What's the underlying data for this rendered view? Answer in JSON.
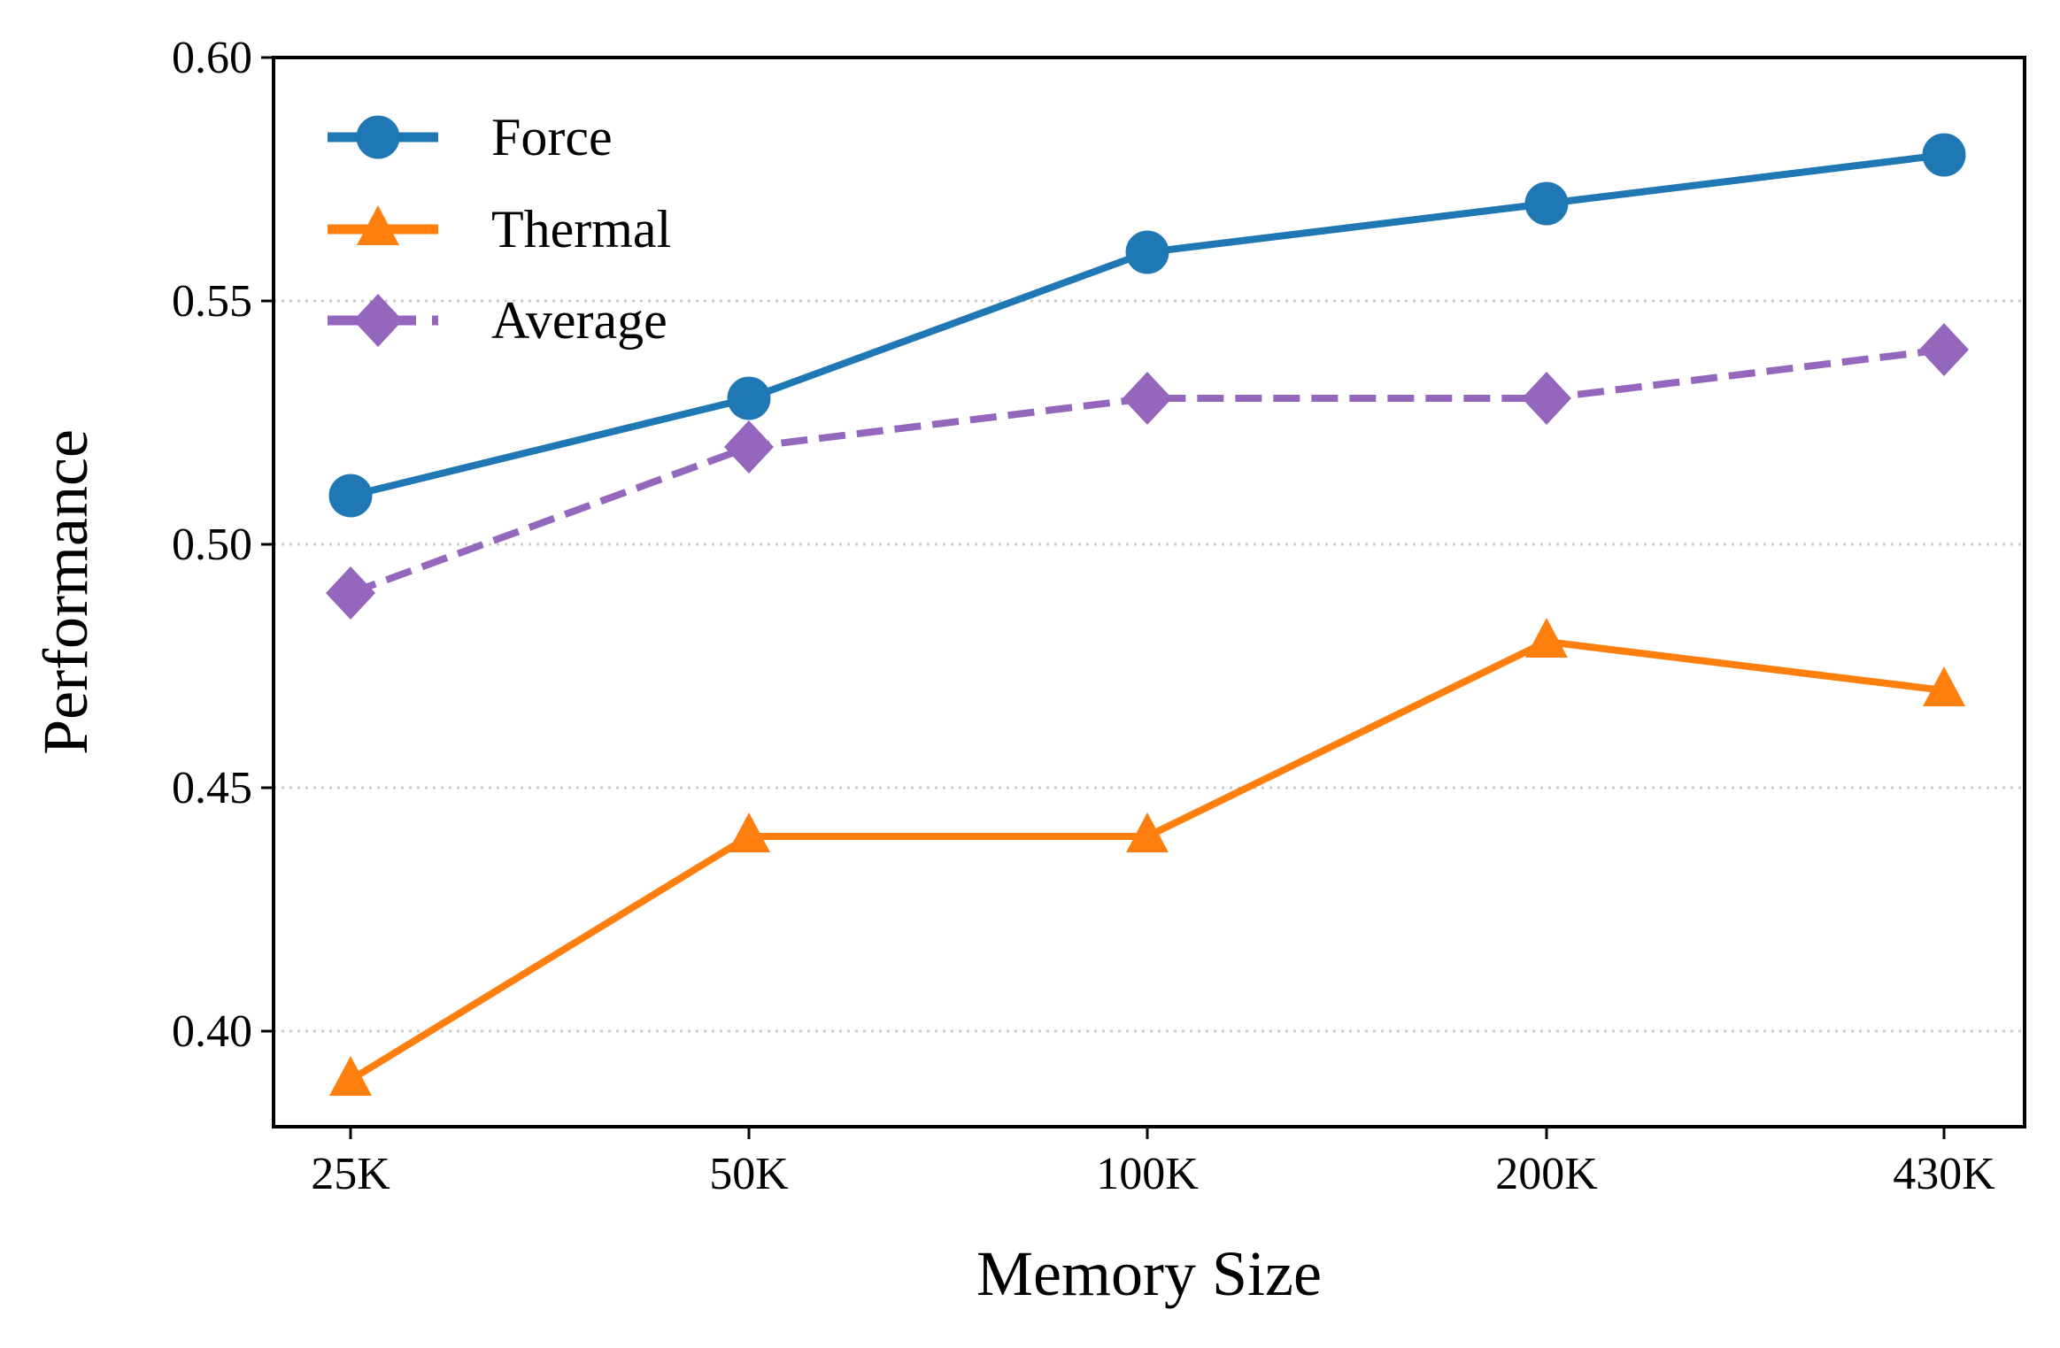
{
  "chart_data": {
    "type": "line",
    "title": "",
    "xlabel": "Memory Size",
    "ylabel": "Performance",
    "categories": [
      "25K",
      "50K",
      "100K",
      "200K",
      "430K"
    ],
    "ylim": [
      0.38,
      0.6
    ],
    "yticks": [
      "0.40",
      "0.45",
      "0.50",
      "0.55",
      "0.60"
    ],
    "grid": "horizontal dotted",
    "legend_position": "top-left",
    "series": [
      {
        "name": "Force",
        "values": [
          0.51,
          0.53,
          0.56,
          0.57,
          0.58
        ],
        "color": "#1f77b4",
        "marker": "circle",
        "linestyle": "solid"
      },
      {
        "name": "Thermal",
        "values": [
          0.39,
          0.44,
          0.44,
          0.48,
          0.47
        ],
        "color": "#ff7f0e",
        "marker": "triangle",
        "linestyle": "solid"
      },
      {
        "name": "Average",
        "values": [
          0.49,
          0.52,
          0.53,
          0.53,
          0.54
        ],
        "color": "#9467bd",
        "marker": "diamond",
        "linestyle": "dashed"
      }
    ]
  }
}
